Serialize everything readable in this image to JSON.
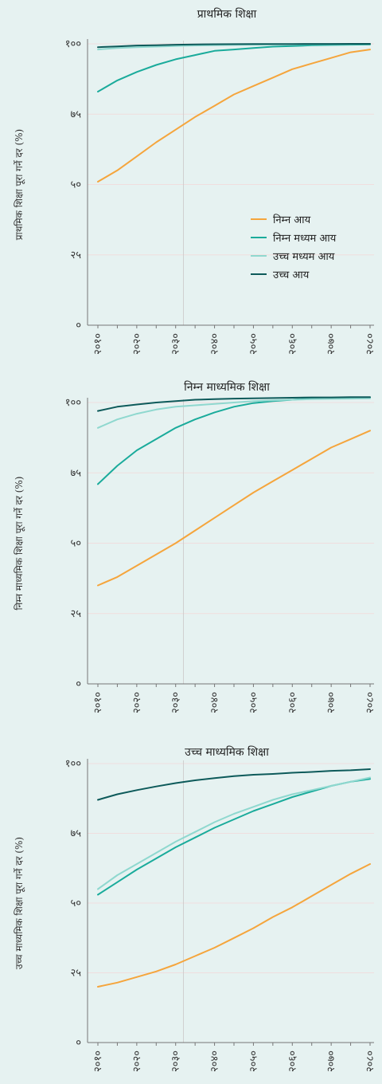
{
  "chart_data": [
    {
      "type": "line",
      "title": "प्राथमिक शिक्षा",
      "ylabel": "प्राथमिक शिक्षा पूरा गर्ने दर (%)",
      "xlabel": "",
      "x": [
        2010,
        2015,
        2020,
        2025,
        2030,
        2035,
        2040,
        2045,
        2050,
        2055,
        2060,
        2065,
        2070,
        2075,
        2080
      ],
      "x_tick_values": [
        2010,
        2020,
        2030,
        2040,
        2050,
        2060,
        2070,
        2080
      ],
      "x_tick_labels": [
        "२०१०",
        "२०२०",
        "२०३०",
        "२०४०",
        "२०५०",
        "२०६०",
        "२०७०",
        "२०८०"
      ],
      "y_tick_values": [
        0,
        25,
        50,
        75,
        100
      ],
      "y_tick_labels": [
        "०",
        "२५",
        "५०",
        "७५",
        "१००"
      ],
      "xlim": [
        2010,
        2080
      ],
      "ylim": [
        0,
        100
      ],
      "grid": true,
      "reference_x": 2032,
      "legend_position": "right",
      "series": [
        {
          "name": "निम्न आय",
          "color": "#f5a53c",
          "values": [
            51,
            55,
            60,
            65,
            69.5,
            74,
            78,
            82,
            85,
            88,
            91,
            93,
            95,
            97,
            98
          ]
        },
        {
          "name": "निम्न मध्यम आय",
          "color": "#1aab9b",
          "values": [
            83,
            87,
            90,
            92.5,
            94.5,
            96,
            97.5,
            98,
            98.5,
            99,
            99.2,
            99.5,
            99.6,
            99.7,
            99.8
          ]
        },
        {
          "name": "उच्च मध्यम आय",
          "color": "#8fd8cf",
          "values": [
            98,
            98.5,
            98.8,
            99,
            99.2,
            99.4,
            99.5,
            99.6,
            99.7,
            99.8,
            99.8,
            99.9,
            99.9,
            99.9,
            100
          ]
        },
        {
          "name": "उच्च आय",
          "color": "#0d5a5a",
          "values": [
            98.8,
            99.1,
            99.4,
            99.5,
            99.7,
            99.8,
            99.85,
            99.9,
            99.92,
            99.95,
            99.95,
            99.97,
            99.98,
            99.99,
            100
          ]
        }
      ]
    },
    {
      "type": "line",
      "title": "निम्न माध्यमिक शिक्षा",
      "ylabel": "निम्न माध्यमिक शिक्षा पूरा गर्ने दर (%)",
      "xlabel": "",
      "x": [
        2010,
        2015,
        2020,
        2025,
        2030,
        2035,
        2040,
        2045,
        2050,
        2055,
        2060,
        2065,
        2070,
        2075,
        2080
      ],
      "x_tick_values": [
        2010,
        2020,
        2030,
        2040,
        2050,
        2060,
        2070,
        2080
      ],
      "x_tick_labels": [
        "२०१०",
        "२०२०",
        "२०३०",
        "२०४०",
        "२०५०",
        "२०६०",
        "२०७०",
        "२०८०"
      ],
      "y_tick_values": [
        0,
        25,
        50,
        75,
        100
      ],
      "y_tick_labels": [
        "०",
        "२५",
        "५०",
        "७५",
        "१००"
      ],
      "xlim": [
        2010,
        2080
      ],
      "ylim": [
        0,
        100
      ],
      "grid": true,
      "reference_x": 2032,
      "series": [
        {
          "name": "निम्न आय",
          "color": "#f5a53c",
          "values": [
            35,
            38,
            42,
            46,
            50,
            54.5,
            59,
            63.5,
            68,
            72,
            76,
            80,
            84,
            87,
            90
          ]
        },
        {
          "name": "निम्न मध्यम आय",
          "color": "#1aab9b",
          "values": [
            71,
            77.5,
            83,
            87,
            91,
            94,
            96.5,
            98.5,
            99.8,
            100.5,
            101,
            101.5,
            101.6,
            101.7,
            101.8
          ]
        },
        {
          "name": "उच्च मध्यम आय",
          "color": "#8fd8cf",
          "values": [
            91,
            94,
            96,
            97.5,
            98.5,
            99,
            99.5,
            100,
            100.5,
            100.8,
            101,
            101.2,
            101.3,
            101.4,
            101.5
          ]
        },
        {
          "name": "उच्च आय",
          "color": "#0d5a5a",
          "values": [
            97,
            98.5,
            99.3,
            100,
            100.5,
            101,
            101.2,
            101.4,
            101.5,
            101.6,
            101.7,
            101.8,
            101.8,
            101.9,
            101.9
          ]
        }
      ]
    },
    {
      "type": "line",
      "title": "उच्च माध्यमिक शिक्षा",
      "ylabel": "उच्च माध्यमिक शिक्षा पूरा गर्ने दर (%)",
      "xlabel": "",
      "x": [
        2010,
        2015,
        2020,
        2025,
        2030,
        2035,
        2040,
        2045,
        2050,
        2055,
        2060,
        2065,
        2070,
        2075,
        2080
      ],
      "x_tick_values": [
        2010,
        2020,
        2030,
        2040,
        2050,
        2060,
        2070,
        2080
      ],
      "x_tick_labels": [
        "२०१०",
        "२०२०",
        "२०३०",
        "२०४०",
        "२०५०",
        "२०६०",
        "२०७०",
        "२०८०"
      ],
      "y_tick_values": [
        0,
        25,
        50,
        75,
        100
      ],
      "y_tick_labels": [
        "०",
        "२५",
        "५०",
        "७५",
        "१००"
      ],
      "xlim": [
        2010,
        2080
      ],
      "ylim": [
        0,
        100
      ],
      "grid": true,
      "reference_x": 2032,
      "series": [
        {
          "name": "निम्न आय",
          "color": "#f5a53c",
          "values": [
            20,
            21.5,
            23.5,
            25.5,
            28,
            31,
            34,
            37.5,
            41,
            45,
            48.5,
            52.5,
            56.5,
            60.5,
            64
          ]
        },
        {
          "name": "निम्न मध्यम आय",
          "color": "#1aab9b",
          "values": [
            53,
            57.5,
            62,
            66,
            70,
            73.5,
            77,
            80,
            83,
            85.5,
            88,
            90,
            92,
            93.5,
            94.5
          ]
        },
        {
          "name": "उच्च मध्यम आय",
          "color": "#8fd8cf",
          "values": [
            55,
            60,
            64,
            68,
            72,
            75.5,
            79,
            82,
            84.5,
            87,
            89,
            90.5,
            92,
            93.5,
            95
          ]
        },
        {
          "name": "उच्च आय",
          "color": "#0d5a5a",
          "values": [
            87,
            89,
            90.5,
            91.8,
            93,
            94,
            94.8,
            95.5,
            96,
            96.3,
            96.7,
            97,
            97.4,
            97.6,
            98
          ]
        }
      ]
    }
  ]
}
